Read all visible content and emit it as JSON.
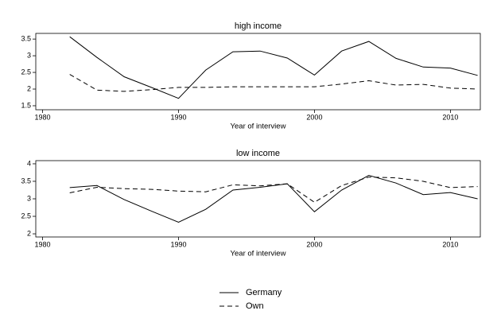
{
  "chart_data": [
    {
      "type": "line",
      "title": "high income",
      "x_label": "Year of interview",
      "x": [
        1982,
        1984,
        1986,
        1988,
        1990,
        1992,
        1994,
        1996,
        1998,
        2000,
        2002,
        2004,
        2006,
        2008,
        2010,
        2012
      ],
      "xlim": [
        1979.5,
        2012.2
      ],
      "xticks": [
        1980,
        1990,
        2000,
        2010
      ],
      "ylim": [
        1.38,
        3.67
      ],
      "yticks": [
        1.5,
        2,
        2.5,
        3,
        3.5
      ],
      "series": [
        {
          "name": "Germany",
          "color": "#000000",
          "dash": false,
          "values": [
            3.57,
            2.95,
            2.37,
            2.05,
            1.72,
            2.57,
            3.12,
            3.14,
            2.93,
            2.42,
            3.14,
            3.43,
            2.92,
            2.66,
            2.63,
            2.41
          ]
        },
        {
          "name": "Own",
          "color": "#000000",
          "dash": true,
          "values": [
            2.44,
            1.97,
            1.93,
            1.98,
            2.05,
            2.05,
            2.07,
            2.07,
            2.07,
            2.07,
            2.15,
            2.25,
            2.12,
            2.14,
            2.03,
            2.0
          ]
        }
      ]
    },
    {
      "type": "line",
      "title": "low income",
      "x_label": "Year of interview",
      "x": [
        1982,
        1984,
        1986,
        1988,
        1990,
        1992,
        1994,
        1996,
        1998,
        2000,
        2002,
        2004,
        2006,
        2008,
        2010,
        2012
      ],
      "xlim": [
        1979.5,
        2012.2
      ],
      "xticks": [
        1980,
        1990,
        2000,
        2010
      ],
      "ylim": [
        1.91,
        4.09
      ],
      "yticks": [
        2,
        2.5,
        3,
        3.5,
        4
      ],
      "series": [
        {
          "color": "#000000",
          "dash": false,
          "values": [
            3.32,
            3.38,
            2.98,
            2.65,
            2.33,
            2.7,
            3.25,
            3.33,
            3.43,
            2.63,
            3.25,
            3.67,
            3.45,
            3.12,
            3.18,
            3.0
          ]
        },
        {
          "color": "#000000",
          "dash": true,
          "values": [
            3.17,
            3.33,
            3.29,
            3.27,
            3.22,
            3.2,
            3.4,
            3.37,
            3.43,
            2.9,
            3.38,
            3.62,
            3.6,
            3.5,
            3.32,
            3.35
          ]
        }
      ]
    }
  ]
}
